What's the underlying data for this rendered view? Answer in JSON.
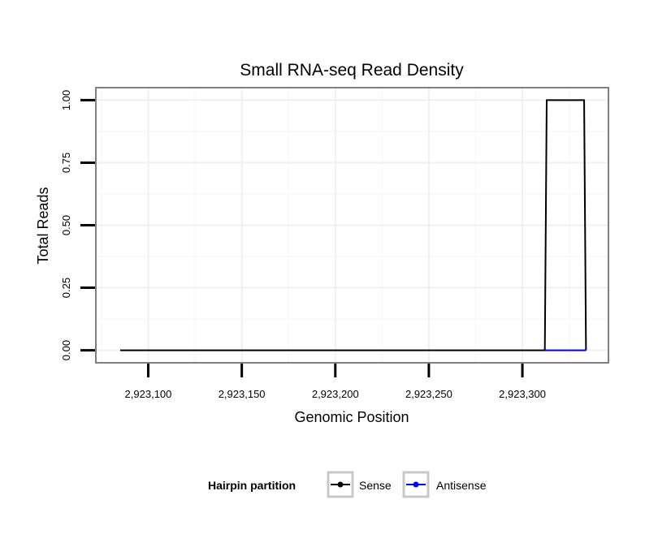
{
  "chart_data": {
    "type": "line",
    "title": "Small RNA-seq Read Density",
    "xlabel": "Genomic Position",
    "ylabel": "Total Reads",
    "xlim": [
      2923072,
      2923346
    ],
    "ylim": [
      -0.05,
      1.05
    ],
    "xticks": [
      2923100,
      2923150,
      2923200,
      2923250,
      2923300
    ],
    "xtick_labels": [
      "2,923,100",
      "2,923,150",
      "2,923,200",
      "2,923,250",
      "2,923,300"
    ],
    "yticks": [
      0,
      0.25,
      0.5,
      0.75,
      1.0
    ],
    "ytick_labels": [
      "0.00",
      "0.25",
      "0.50",
      "0.75",
      "1.00"
    ],
    "grid": true,
    "legend": {
      "title": "Hairpin partition",
      "position": "bottom",
      "entries": [
        "Sense",
        "Antisense"
      ]
    },
    "series": [
      {
        "name": "Sense",
        "color": "#000000",
        "x": [
          2923085,
          2923312,
          2923313,
          2923333,
          2923334
        ],
        "y": [
          0,
          0,
          1,
          1,
          0
        ]
      },
      {
        "name": "Antisense",
        "color": "#0000ff",
        "x": [
          2923312,
          2923334
        ],
        "y": [
          0,
          0
        ]
      }
    ]
  }
}
